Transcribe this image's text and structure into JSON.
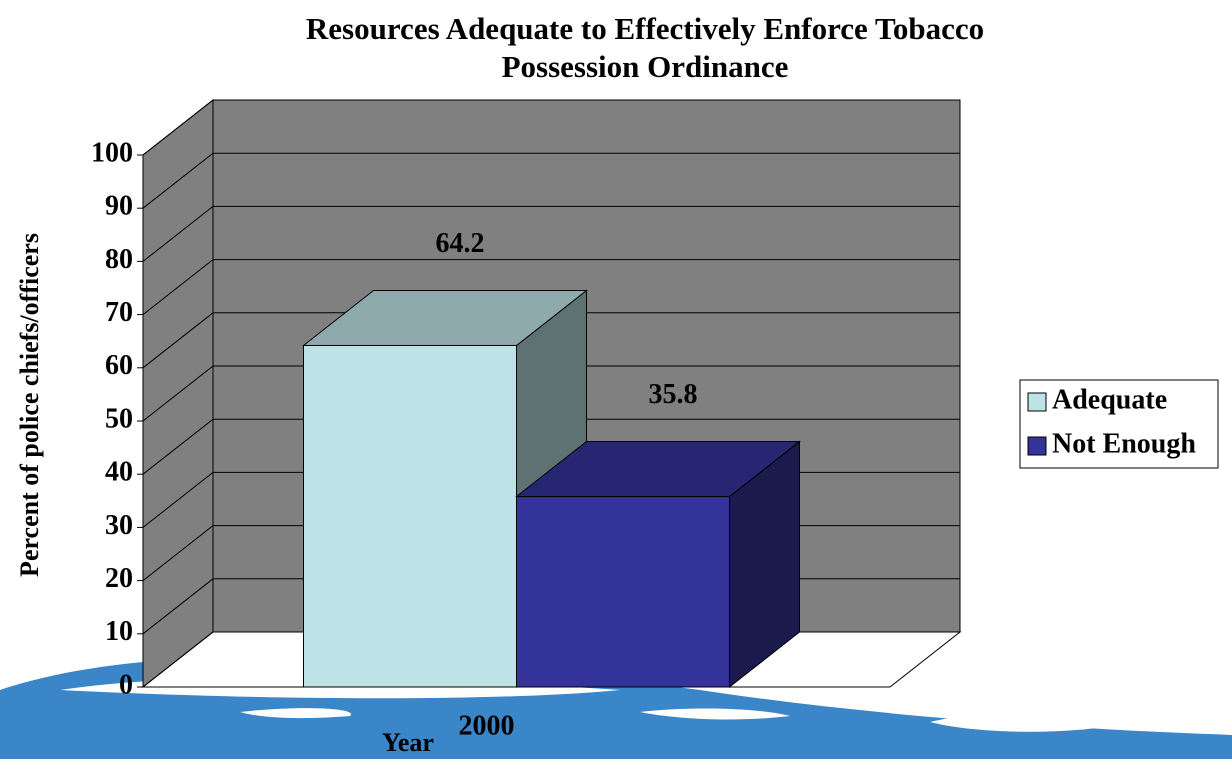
{
  "chart_data": {
    "type": "bar3d",
    "title": "Resources Adequate to Effectively Enforce Tobacco Possession Ordinance",
    "x_label": "Year",
    "y_label": "Percent of police chiefs/officers",
    "categories": [
      "2000"
    ],
    "series": [
      {
        "name": "Adequate",
        "color": "#bde3e6",
        "values": [
          64.2
        ]
      },
      {
        "name": "Not Enough",
        "color": "#333399",
        "values": [
          35.8
        ]
      }
    ],
    "ylim": [
      0,
      100
    ],
    "yticks": [
      0,
      10,
      20,
      30,
      40,
      50,
      60,
      70,
      80,
      90,
      100
    ],
    "grid": true,
    "legend": "right"
  }
}
